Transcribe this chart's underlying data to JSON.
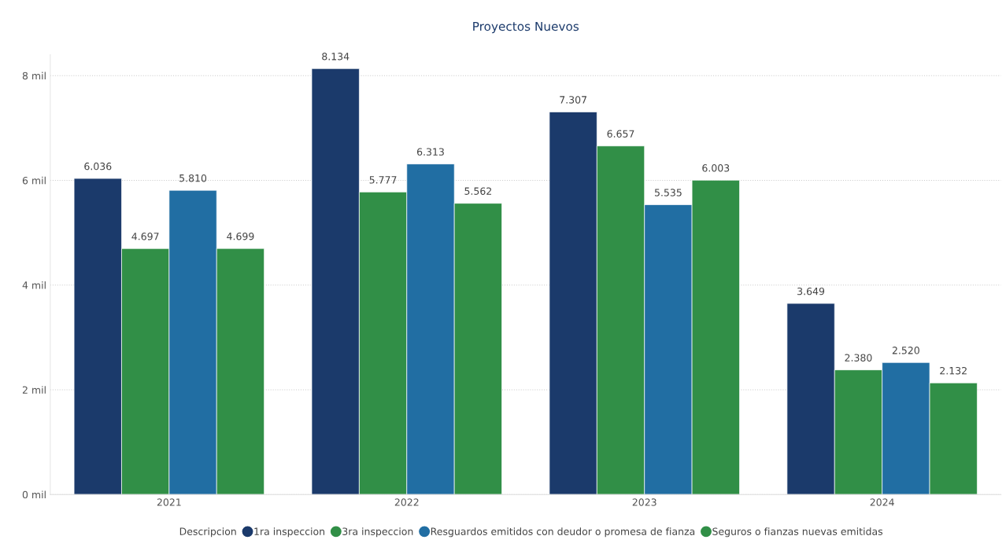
{
  "chart_data": {
    "type": "bar",
    "title": "Proyectos Nuevos",
    "legend_title": "Descripcion",
    "categories": [
      "2021",
      "2022",
      "2023",
      "2024"
    ],
    "series": [
      {
        "name": "1ra inspeccion",
        "color": "#1b3a6b",
        "values": [
          6.036,
          8.134,
          7.307,
          3.649
        ],
        "value_labels": [
          "6.036",
          "8.134",
          "7.307",
          "3.649"
        ]
      },
      {
        "name": "3ra inspeccion",
        "color": "#318f47",
        "values": [
          4.697,
          5.777,
          6.657,
          2.38
        ],
        "value_labels": [
          "4.697",
          "5.777",
          "6.657",
          "2.380"
        ]
      },
      {
        "name": "Resguardos emitidos con deudor o promesa de fianza",
        "color": "#216ea3",
        "values": [
          5.81,
          6.313,
          5.535,
          2.52
        ],
        "value_labels": [
          "5.810",
          "6.313",
          "5.535",
          "2.520"
        ]
      },
      {
        "name": "Seguros o fianzas nuevas emitidas",
        "color": "#318f47",
        "values": [
          4.699,
          5.562,
          6.003,
          2.132
        ],
        "value_labels": [
          "4.699",
          "5.562",
          "6.003",
          "2.132"
        ]
      }
    ],
    "ylim": [
      0,
      8.4
    ],
    "yticks": [
      {
        "value": 0,
        "label": "0 mil"
      },
      {
        "value": 2,
        "label": "2 mil"
      },
      {
        "value": 4,
        "label": "4 mil"
      },
      {
        "value": 6,
        "label": "6 mil"
      },
      {
        "value": 8,
        "label": "8 mil"
      }
    ],
    "grid": "y",
    "legend": "bottom"
  }
}
